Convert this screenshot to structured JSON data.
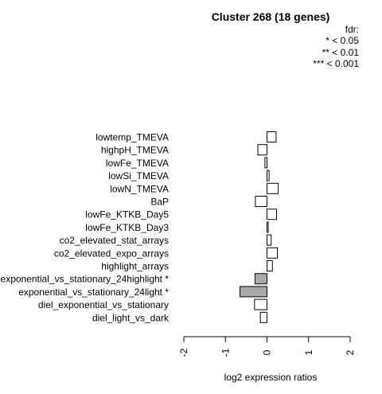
{
  "chart_data": {
    "type": "bar",
    "orientation": "horizontal",
    "title": "Cluster 268 (18 genes)",
    "xlabel": "log2 expression ratios",
    "ylabel": "",
    "xlim": [
      -2,
      2
    ],
    "xticks": [
      "-2",
      "-1",
      "0",
      "1",
      "2"
    ],
    "legend": {
      "title": "fdr:",
      "entries": [
        "* < 0.05",
        "** < 0.01",
        "*** < 0.001"
      ],
      "position": "top-right"
    },
    "categories": [
      "lowtemp_TMEVA",
      "highpH_TMEVA",
      "lowFe_TMEVA",
      "lowSi_TMEVA",
      "lowN_TMEVA",
      "BaP",
      "lowFe_KTKB_Day5",
      "lowFe_KTKB_Day3",
      "co2_elevated_stat_arrays",
      "co2_elevated_expo_arrays",
      "highlight_arrays",
      "exponential_vs_stationary_24highlight *",
      "exponential_vs_stationary_24light *",
      "diel_exponential_vs_stationary",
      "diel_light_vs_dark"
    ],
    "values": [
      0.22,
      -0.22,
      -0.05,
      0.05,
      0.27,
      -0.28,
      0.23,
      0.03,
      0.1,
      0.25,
      0.13,
      -0.29,
      -0.65,
      -0.3,
      -0.16
    ],
    "significant": [
      false,
      false,
      false,
      false,
      false,
      false,
      false,
      false,
      false,
      false,
      false,
      true,
      true,
      false,
      false
    ],
    "colors": {
      "bar": "#ffffff",
      "significant_bar": "#a9a9a9",
      "stroke": "#000000"
    }
  }
}
